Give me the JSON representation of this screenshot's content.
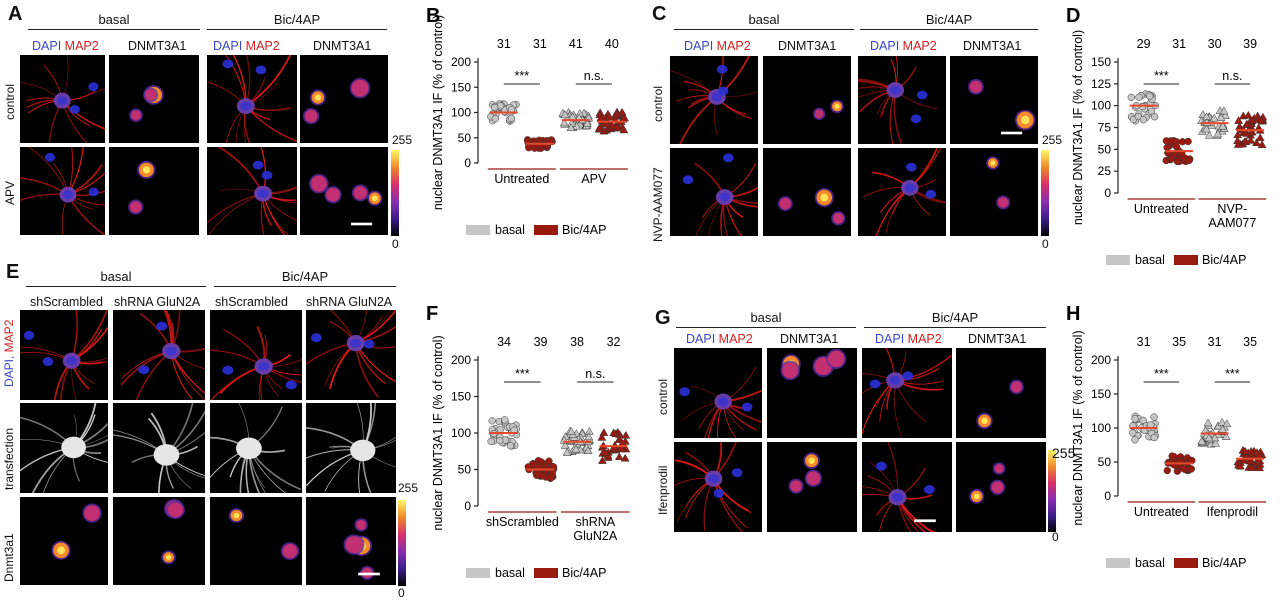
{
  "panels": {
    "A": {
      "letter": "A",
      "header_left": "basal",
      "header_right": "Bic/4AP",
      "rows": [
        "control",
        "APV"
      ],
      "ch_dapi": "DAPI",
      "ch_map2": "MAP2",
      "ch_dnmt": "DNMT3A1",
      "cbar_max": "255",
      "cbar_min": "0"
    },
    "C": {
      "letter": "C",
      "header_left": "basal",
      "header_right": "Bic/4AP",
      "rows": [
        "control",
        "NVP-AAM077"
      ],
      "ch_dapi": "DAPI",
      "ch_map2": "MAP2",
      "ch_dnmt": "DNMT3A1",
      "cbar_max": "255",
      "cbar_min": "0"
    },
    "E": {
      "letter": "E",
      "header_left": "basal",
      "header_right": "Bic/4AP",
      "cols": [
        "shScrambled",
        "shRNA GluN2A",
        "shScrambled",
        "shRNA GluN2A"
      ],
      "row1_dapi": "DAPI,",
      "row1_map2": "MAP2",
      "row2": "transfection",
      "row3": "Dnmt3a1",
      "cbar_max": "255",
      "cbar_min": "0"
    },
    "G": {
      "letter": "G",
      "header_left": "basal",
      "header_right": "Bic/4AP",
      "rows": [
        "control",
        "Ifenprodil"
      ],
      "ch_dapi": "DAPI",
      "ch_map2": "MAP2",
      "ch_dnmt": "DNMT3A1",
      "cbar_max": "255",
      "cbar_min": "0"
    }
  },
  "legend": {
    "basal": "basal",
    "bic": "Bic/4AP"
  },
  "colors": {
    "basal": "#c6c6c6",
    "bic": "#9b1a10",
    "mean": "#e8492a",
    "map2": "#e01818",
    "dapi": "#2a30d8"
  },
  "chart_data": [
    {
      "id": "B",
      "type": "scatter",
      "letter": "B",
      "ylabel": "nuclear DNMT3A1 IF (% of control)",
      "ylim": [
        0,
        200
      ],
      "yticks": [
        0,
        50,
        100,
        150,
        200
      ],
      "groups": [
        "Untreated",
        "APV"
      ],
      "n": [
        "31",
        "31",
        "41",
        "40"
      ],
      "means": [
        100,
        38,
        85,
        82
      ],
      "sig": [
        {
          "label": "***"
        },
        {
          "label": "n.s."
        }
      ],
      "series": [
        {
          "name": "basal",
          "marker": "circle"
        },
        {
          "name": "Bic/4AP",
          "marker": "circle"
        },
        {
          "name": "basal",
          "marker": "triangle"
        },
        {
          "name": "Bic/4AP",
          "marker": "triangle"
        }
      ]
    },
    {
      "id": "D",
      "type": "scatter",
      "letter": "D",
      "ylabel": "nuclear DNMT3A1 IF (% of control)",
      "ylim": [
        0,
        150
      ],
      "yticks": [
        0,
        25,
        50,
        75,
        100,
        125,
        150
      ],
      "groups": [
        "Untreated",
        "NVP-\nAAM077"
      ],
      "n": [
        "29",
        "31",
        "30",
        "39"
      ],
      "means": [
        100,
        48,
        80,
        72
      ],
      "sig": [
        {
          "label": "***"
        },
        {
          "label": "n.s."
        }
      ]
    },
    {
      "id": "F",
      "type": "scatter",
      "letter": "F",
      "ylabel": "nuclear DNMT3A1 IF (% of control)",
      "ylim": [
        0,
        200
      ],
      "yticks": [
        0,
        50,
        100,
        150,
        200
      ],
      "groups": [
        "shScrambled",
        "shRNA\nGluN2A"
      ],
      "n": [
        "34",
        "39",
        "38",
        "32"
      ],
      "means": [
        100,
        50,
        88,
        82
      ],
      "sig": [
        {
          "label": "***"
        },
        {
          "label": "n.s."
        }
      ]
    },
    {
      "id": "H",
      "type": "scatter",
      "letter": "H",
      "ylabel": "nuclear DNMT3A1 IF (% of control)",
      "ylim": [
        0,
        200
      ],
      "yticks": [
        0,
        50,
        100,
        150,
        200
      ],
      "groups": [
        "Untreated",
        "Ifenprodil"
      ],
      "n": [
        "31",
        "35",
        "31",
        "35"
      ],
      "means": [
        100,
        48,
        92,
        55
      ],
      "sig": [
        {
          "label": "***"
        },
        {
          "label": "***"
        }
      ]
    }
  ]
}
